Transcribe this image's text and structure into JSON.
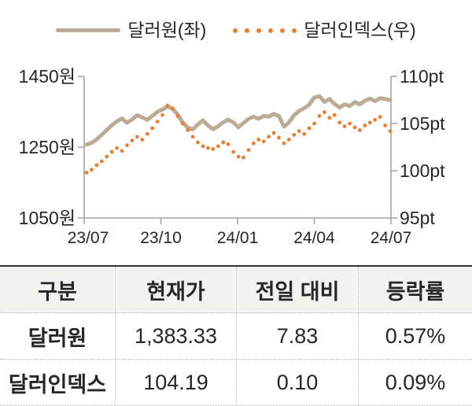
{
  "legend": {
    "usdkrw_label": "달러원(좌)",
    "dollar_index_label": "달러인덱스(우)"
  },
  "chart_data": {
    "type": "line",
    "title": "",
    "grid": false,
    "legend_position": "top",
    "x_tick_labels": [
      "23/07",
      "23/10",
      "24/01",
      "24/04",
      "24/07"
    ],
    "left_axis": {
      "tick_labels": [
        "1450원",
        "1250원",
        "1050원"
      ],
      "min": 1050,
      "max": 1450,
      "unit": "원"
    },
    "right_axis": {
      "tick_labels": [
        "110pt",
        "105pt",
        "100pt",
        "95pt"
      ],
      "min": 95,
      "max": 110,
      "unit": "pt"
    },
    "series": [
      {
        "name": "달러원(좌)",
        "axis": "left",
        "style": "line",
        "color": "#b9ac93",
        "values": [
          1257,
          1262,
          1272,
          1285,
          1298,
          1312,
          1323,
          1331,
          1319,
          1328,
          1340,
          1334,
          1327,
          1338,
          1350,
          1356,
          1365,
          1358,
          1342,
          1320,
          1305,
          1300,
          1314,
          1326,
          1311,
          1301,
          1309,
          1320,
          1328,
          1320,
          1306,
          1318,
          1330,
          1336,
          1330,
          1338,
          1336,
          1344,
          1338,
          1308,
          1320,
          1340,
          1352,
          1360,
          1370,
          1390,
          1394,
          1378,
          1386,
          1372,
          1362,
          1371,
          1366,
          1377,
          1371,
          1381,
          1387,
          1380,
          1388,
          1386,
          1383
        ]
      },
      {
        "name": "달러인덱스(우)",
        "axis": "right",
        "style": "dots",
        "color": "#ed7d31",
        "values": [
          99.8,
          100.1,
          100.6,
          101.0,
          101.5,
          102.0,
          102.4,
          102.1,
          102.7,
          103.2,
          103.6,
          103.3,
          103.9,
          104.5,
          105.2,
          105.9,
          106.9,
          106.6,
          105.8,
          105.0,
          104.3,
          103.6,
          103.0,
          102.6,
          102.4,
          102.3,
          102.6,
          103.0,
          102.8,
          102.0,
          101.5,
          101.4,
          102.2,
          102.9,
          103.3,
          103.1,
          103.6,
          104.0,
          103.5,
          102.9,
          103.3,
          103.8,
          104.2,
          103.9,
          104.5,
          105.0,
          105.8,
          106.2,
          105.6,
          105.9,
          105.1,
          104.7,
          105.0,
          104.6,
          104.3,
          104.8,
          105.1,
          105.4,
          105.7,
          104.8,
          104.2
        ]
      }
    ]
  },
  "table": {
    "headers": [
      "구분",
      "현재가",
      "전일 대비",
      "등락률"
    ],
    "rows": [
      [
        "달러원",
        "1,383.33",
        "7.83",
        "0.57%"
      ],
      [
        "달러인덱스",
        "104.19",
        "0.10",
        "0.09%"
      ]
    ]
  },
  "colors": {
    "usdkrw": "#b9ac93",
    "dollar_index": "#ed7d31",
    "axis": "#a3a3a3",
    "text": "#262626",
    "table_header_bg": "#f2f2f0",
    "table_top_border": "#333333"
  }
}
